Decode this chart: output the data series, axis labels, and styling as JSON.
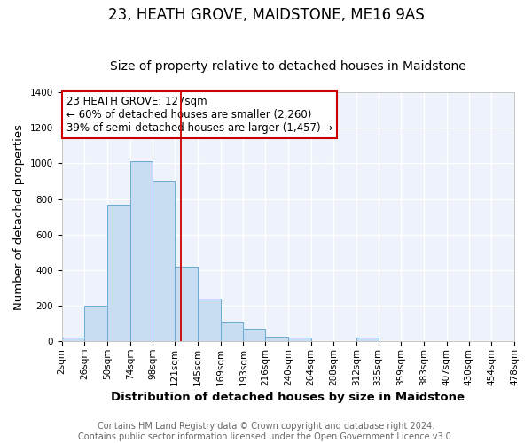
{
  "title": "23, HEATH GROVE, MAIDSTONE, ME16 9AS",
  "subtitle": "Size of property relative to detached houses in Maidstone",
  "xlabel": "Distribution of detached houses by size in Maidstone",
  "ylabel": "Number of detached properties",
  "bin_edges": [
    2,
    26,
    50,
    74,
    98,
    121,
    145,
    169,
    193,
    216,
    240,
    264,
    288,
    312,
    335,
    359,
    383,
    407,
    430,
    454,
    478
  ],
  "bar_heights": [
    20,
    200,
    770,
    1010,
    900,
    420,
    240,
    110,
    70,
    25,
    20,
    0,
    0,
    20,
    0,
    0,
    0,
    0,
    0,
    0
  ],
  "bar_color": "#c9ddf2",
  "bar_edge_color": "#6aaad4",
  "ref_line_x": 127,
  "ref_line_color": "#cc0000",
  "annotation_line1": "23 HEATH GROVE: 127sqm",
  "annotation_line2": "← 60% of detached houses are smaller (2,260)",
  "annotation_line3": "39% of semi-detached houses are larger (1,457) →",
  "ylim": [
    0,
    1400
  ],
  "yticks": [
    0,
    200,
    400,
    600,
    800,
    1000,
    1200,
    1400
  ],
  "tick_labels": [
    "2sqm",
    "26sqm",
    "50sqm",
    "74sqm",
    "98sqm",
    "121sqm",
    "145sqm",
    "169sqm",
    "193sqm",
    "216sqm",
    "240sqm",
    "264sqm",
    "288sqm",
    "312sqm",
    "335sqm",
    "359sqm",
    "383sqm",
    "407sqm",
    "430sqm",
    "454sqm",
    "478sqm"
  ],
  "footer_line1": "Contains HM Land Registry data © Crown copyright and database right 2024.",
  "footer_line2": "Contains public sector information licensed under the Open Government Licence v3.0.",
  "plot_bg_color": "#eef2fb",
  "fig_bg_color": "#ffffff",
  "grid_color": "#ffffff",
  "title_fontsize": 12,
  "subtitle_fontsize": 10,
  "axis_label_fontsize": 9.5,
  "tick_fontsize": 7.5,
  "footer_fontsize": 7,
  "annot_fontsize": 8.5
}
